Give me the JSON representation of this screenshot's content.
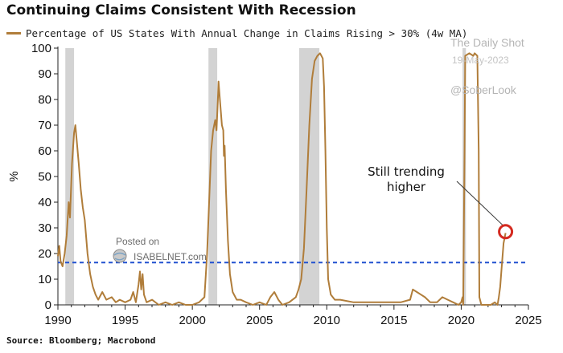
{
  "chart_data": {
    "type": "line",
    "title": "Continuing Claims Consistent With Recession",
    "ylabel": "%",
    "xlim": [
      1990,
      2025
    ],
    "ylim": [
      0,
      100
    ],
    "x_ticks": [
      1990,
      1995,
      2000,
      2005,
      2010,
      2015,
      2020,
      2025
    ],
    "y_ticks": [
      0,
      10,
      20,
      30,
      40,
      50,
      60,
      70,
      80,
      90,
      100
    ],
    "grid": false,
    "legend_position": "top-left",
    "series": [
      {
        "name": "Percentage of US States With Annual Change in Claims Rising > 30% (4w MA)",
        "color": "#b07d3a",
        "points": [
          [
            1990.0,
            19
          ],
          [
            1990.1,
            23
          ],
          [
            1990.2,
            17
          ],
          [
            1990.35,
            15
          ],
          [
            1990.5,
            20
          ],
          [
            1990.65,
            27
          ],
          [
            1990.8,
            40
          ],
          [
            1990.9,
            34
          ],
          [
            1991.05,
            55
          ],
          [
            1991.2,
            67
          ],
          [
            1991.3,
            70
          ],
          [
            1991.4,
            64
          ],
          [
            1991.55,
            55
          ],
          [
            1991.7,
            45
          ],
          [
            1991.85,
            38
          ],
          [
            1992.0,
            33
          ],
          [
            1992.2,
            20
          ],
          [
            1992.4,
            12
          ],
          [
            1992.6,
            7
          ],
          [
            1992.8,
            4
          ],
          [
            1993.0,
            2
          ],
          [
            1993.3,
            5
          ],
          [
            1993.6,
            2
          ],
          [
            1994.0,
            3
          ],
          [
            1994.3,
            1
          ],
          [
            1994.6,
            2
          ],
          [
            1995.0,
            1
          ],
          [
            1995.4,
            2
          ],
          [
            1995.6,
            5
          ],
          [
            1995.8,
            1
          ],
          [
            1996.0,
            8
          ],
          [
            1996.1,
            13
          ],
          [
            1996.2,
            6
          ],
          [
            1996.3,
            12
          ],
          [
            1996.4,
            4
          ],
          [
            1996.6,
            1
          ],
          [
            1997.0,
            2
          ],
          [
            1997.5,
            0
          ],
          [
            1998.0,
            1
          ],
          [
            1998.5,
            0
          ],
          [
            1999.0,
            1
          ],
          [
            1999.5,
            0
          ],
          [
            2000.0,
            0
          ],
          [
            2000.5,
            1
          ],
          [
            2000.9,
            3
          ],
          [
            2001.1,
            20
          ],
          [
            2001.25,
            40
          ],
          [
            2001.4,
            60
          ],
          [
            2001.55,
            68
          ],
          [
            2001.7,
            72
          ],
          [
            2001.8,
            68
          ],
          [
            2001.9,
            80
          ],
          [
            2001.95,
            87
          ],
          [
            2002.05,
            80
          ],
          [
            2002.2,
            70
          ],
          [
            2002.3,
            68
          ],
          [
            2002.35,
            58
          ],
          [
            2002.4,
            62
          ],
          [
            2002.5,
            45
          ],
          [
            2002.65,
            25
          ],
          [
            2002.8,
            12
          ],
          [
            2003.0,
            5
          ],
          [
            2003.3,
            2
          ],
          [
            2003.6,
            2
          ],
          [
            2004.0,
            1
          ],
          [
            2004.5,
            0
          ],
          [
            2005.0,
            1
          ],
          [
            2005.5,
            0
          ],
          [
            2005.8,
            3
          ],
          [
            2006.1,
            5
          ],
          [
            2006.4,
            2
          ],
          [
            2006.7,
            0
          ],
          [
            2007.2,
            1
          ],
          [
            2007.7,
            3
          ],
          [
            2007.9,
            6
          ],
          [
            2008.1,
            10
          ],
          [
            2008.3,
            22
          ],
          [
            2008.5,
            45
          ],
          [
            2008.7,
            70
          ],
          [
            2008.9,
            88
          ],
          [
            2009.1,
            95
          ],
          [
            2009.3,
            97
          ],
          [
            2009.5,
            98
          ],
          [
            2009.7,
            96
          ],
          [
            2009.8,
            85
          ],
          [
            2009.9,
            60
          ],
          [
            2010.0,
            30
          ],
          [
            2010.1,
            10
          ],
          [
            2010.3,
            4
          ],
          [
            2010.6,
            2
          ],
          [
            2011.0,
            2
          ],
          [
            2012.0,
            1
          ],
          [
            2013.0,
            1
          ],
          [
            2014.0,
            1
          ],
          [
            2015.0,
            1
          ],
          [
            2015.5,
            1
          ],
          [
            2016.2,
            2
          ],
          [
            2016.4,
            6
          ],
          [
            2016.7,
            5
          ],
          [
            2017.0,
            4
          ],
          [
            2017.3,
            3
          ],
          [
            2017.7,
            1
          ],
          [
            2018.2,
            1
          ],
          [
            2018.6,
            3
          ],
          [
            2019.0,
            2
          ],
          [
            2019.4,
            1
          ],
          [
            2019.8,
            0
          ],
          [
            2020.0,
            1
          ],
          [
            2020.1,
            3
          ],
          [
            2020.15,
            0
          ],
          [
            2020.25,
            60
          ],
          [
            2020.3,
            97
          ],
          [
            2020.6,
            98
          ],
          [
            2020.9,
            97
          ],
          [
            2021.0,
            98
          ],
          [
            2021.2,
            97
          ],
          [
            2021.3,
            60
          ],
          [
            2021.35,
            3
          ],
          [
            2021.5,
            0
          ],
          [
            2021.8,
            0
          ],
          [
            2022.2,
            0
          ],
          [
            2022.5,
            1
          ],
          [
            2022.7,
            0
          ],
          [
            2022.8,
            3
          ],
          [
            2022.9,
            7
          ],
          [
            2023.0,
            14
          ],
          [
            2023.15,
            24
          ],
          [
            2023.3,
            28
          ]
        ]
      }
    ],
    "recession_bands": [
      [
        1990.55,
        1991.2
      ],
      [
        2001.2,
        2001.85
      ],
      [
        2007.95,
        2009.45
      ],
      [
        2020.1,
        2020.35
      ]
    ],
    "reference_line": {
      "y": 16.5,
      "color": "#2050d0",
      "style": "dashed"
    },
    "highlight_point": {
      "x": 2023.3,
      "y": 28.5,
      "color": "#d42a20"
    },
    "annotation": {
      "line1": "Still trending",
      "line2": "higher",
      "points_to": [
        2023.1,
        31
      ]
    },
    "source": "Source: Bloomberg; Macrobond"
  },
  "watermarks": {
    "daily_shot_source": "The Daily Shot",
    "daily_shot_date": "19-May-2023",
    "handle": "@SoberLook",
    "posted_on": "Posted on",
    "isabelnet": "ISABELNET.com"
  }
}
